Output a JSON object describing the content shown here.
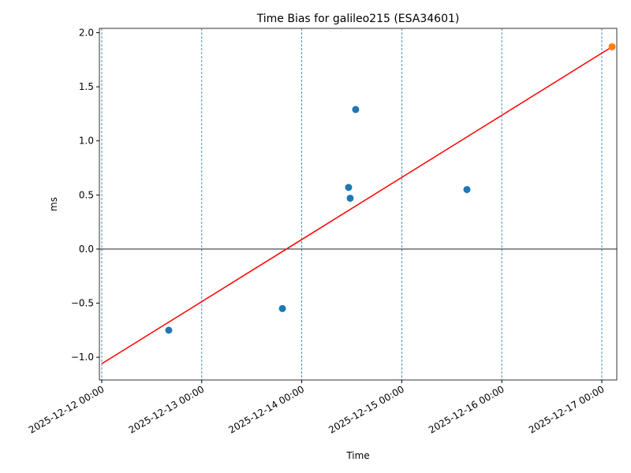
{
  "chart_data": {
    "type": "scatter",
    "title": "Time Bias for galileo215 (ESA34601)",
    "x_label": "Time",
    "y_label": "ms",
    "xlim": [
      "2025-12-11 23:26",
      "2025-12-17 03:36"
    ],
    "xticks": [
      "2025-12-12 00:00",
      "2025-12-13 00:00",
      "2025-12-14 00:00",
      "2025-12-15 00:00",
      "2025-12-16 00:00",
      "2025-12-17 00:00"
    ],
    "ylim": [
      -1.21,
      2.04
    ],
    "yticks": [
      {
        "value": -1.0,
        "label": "−1.0"
      },
      {
        "value": -0.5,
        "label": "−0.5"
      },
      {
        "value": 0,
        "label": "0.0"
      },
      {
        "value": 0.5,
        "label": "0.5"
      },
      {
        "value": 1.0,
        "label": "1.0"
      },
      {
        "value": 1.5,
        "label": "1.5"
      },
      {
        "value": 2.0,
        "label": "2.0"
      }
    ],
    "x_grid": true,
    "grid_color": "#1f77b4",
    "hline": 0,
    "series": [
      {
        "kind": "points",
        "color": "#1f77b4",
        "x": [
          "2025-12-12 16:05",
          "2025-12-13 19:21",
          "2025-12-14 11:14",
          "2025-12-14 11:37",
          "2025-12-14 12:56",
          "2025-12-15 15:38"
        ],
        "values": [
          -0.75,
          -0.55,
          0.57,
          0.47,
          1.29,
          0.55
        ]
      },
      {
        "kind": "line",
        "color": "#ff0000",
        "x": [
          "2025-12-12 00:00",
          "2025-12-17 02:28"
        ],
        "values": [
          -1.06,
          1.87
        ]
      },
      {
        "kind": "points",
        "color": "#ff7f0e",
        "x": [
          "2025-12-17 02:28"
        ],
        "values": [
          1.87
        ]
      }
    ]
  }
}
